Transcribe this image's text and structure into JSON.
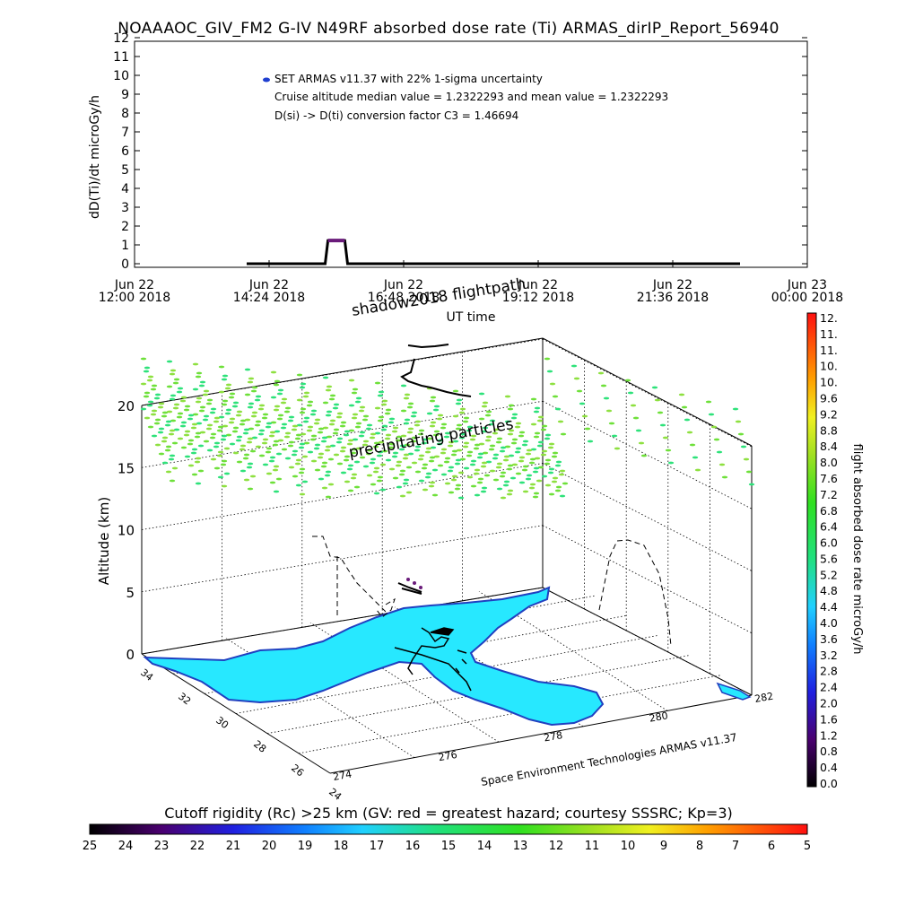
{
  "title": "NOAAAOC_GIV_FM2 G-IV    N49RF  absorbed dose rate (Ti) ARMAS_dirIP_Report_56940",
  "top_chart": {
    "ylabel": "dD(Ti)/dt microGy/h",
    "xlabel": "UT time",
    "legend_lines": [
      "SET ARMAS v11.37 with 22% 1-sigma uncertainty",
      "Cruise altitude median value = 1.2322293 and mean value = 1.2322293",
      "D(si) -> D(ti) conversion factor C3 = 1.46694"
    ],
    "legend_marker_color": "#1f3fd0"
  },
  "chart_data": [
    {
      "type": "line",
      "ylabel": "dD(Ti)/dt microGy/h",
      "xlabel": "UT time",
      "ylim": [
        0,
        12
      ],
      "yticks": [
        "0",
        "1",
        "2",
        "3",
        "4",
        "5",
        "6",
        "7",
        "8",
        "9",
        "10",
        "11",
        "12"
      ],
      "xlim_hours": [
        12.0,
        24.0
      ],
      "xticks": [
        {
          "line1": "Jun 22",
          "line2": "12:00 2018",
          "hour": 12.0
        },
        {
          "line1": "Jun 22",
          "line2": "14:24 2018",
          "hour": 14.4
        },
        {
          "line1": "Jun 22",
          "line2": "16:48 2018",
          "hour": 16.8
        },
        {
          "line1": "Jun 22",
          "line2": "19:12 2018",
          "hour": 19.2
        },
        {
          "line1": "Jun 22",
          "line2": "21:36 2018",
          "hour": 21.6
        },
        {
          "line1": "Jun 23",
          "line2": "00:00 2018",
          "hour": 24.0
        }
      ],
      "series": [
        {
          "color": "#000000",
          "points": [
            [
              14.0,
              0.0
            ],
            [
              15.4,
              0.0
            ],
            [
              15.45,
              1.23
            ],
            [
              15.75,
              1.23
            ],
            [
              15.8,
              0.0
            ],
            [
              22.8,
              0.0
            ]
          ]
        }
      ],
      "highlight": {
        "x_from": 15.45,
        "x_to": 15.75,
        "value": 1.2322293,
        "color": "#6a1b7a"
      }
    },
    {
      "type": "scatter",
      "zlabel": "Altitude (km)",
      "zticks": [
        "0",
        "5",
        "10",
        "15",
        "20"
      ],
      "zlim": [
        0,
        20
      ],
      "lat_ticks": [
        "34",
        "32",
        "30",
        "28",
        "26",
        "24"
      ],
      "lon_ticks": [
        "274",
        "276",
        "278",
        "280",
        "282"
      ],
      "annotations": [
        "shadow2018 flightpath",
        "precipitating particles"
      ],
      "credit": "Space Environment Technologies ARMAS v11.37",
      "particle_layer_altitude_km": [
        12,
        20
      ],
      "particle_colors": [
        "#6ee03a",
        "#2ee27a",
        "#8ee040"
      ]
    }
  ],
  "colorbar_right": {
    "label": "flight absorbed dose rate microGy/h",
    "ticks": [
      "12.",
      "11.",
      "11.",
      "10.",
      "10.",
      "9.6",
      "9.2",
      "8.8",
      "8.4",
      "8.0",
      "7.6",
      "7.2",
      "6.8",
      "6.4",
      "6.0",
      "5.6",
      "5.2",
      "4.8",
      "4.4",
      "4.0",
      "3.6",
      "3.2",
      "2.8",
      "2.4",
      "2.0",
      "1.6",
      "1.2",
      "0.8",
      "0.4",
      "0.0"
    ],
    "min": 0.0,
    "max": 12.0
  },
  "colorbar_bottom": {
    "label": "Cutoff rigidity (Rc) >25 km (GV: red = greatest hazard; courtesy SSSRC; Kp=3)",
    "ticks": [
      "25",
      "24",
      "23",
      "22",
      "21",
      "20",
      "19",
      "18",
      "17",
      "16",
      "15",
      "14",
      "13",
      "12",
      "11",
      "10",
      "9",
      "8",
      "7",
      "6",
      "5"
    ]
  },
  "colors": {
    "ocean": "#ffffff",
    "land": "#27e8ff",
    "coast": "#2040c0",
    "flightpath": "#000000"
  }
}
